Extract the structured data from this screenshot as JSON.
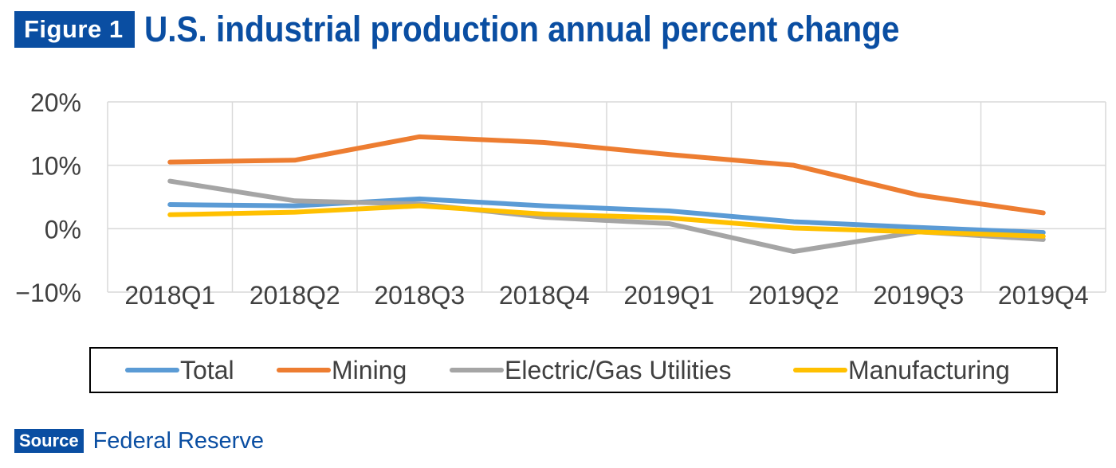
{
  "header": {
    "figure_label": "Figure 1",
    "title": "U.S. industrial production annual percent change"
  },
  "footer": {
    "source_label": "Source",
    "source_text": "Federal Reserve"
  },
  "chart_data": {
    "type": "line",
    "title": "U.S. industrial production annual percent change",
    "xlabel": "",
    "ylabel": "",
    "categories": [
      "2018Q1",
      "2018Q2",
      "2018Q3",
      "2018Q4",
      "2019Q1",
      "2019Q2",
      "2019Q3",
      "2019Q4"
    ],
    "ylim": [
      -10,
      20
    ],
    "yticks": [
      -10,
      0,
      10,
      20
    ],
    "ytick_labels": [
      "−10%",
      "0%",
      "10%",
      "20%"
    ],
    "grid": true,
    "legend_position": "bottom",
    "series": [
      {
        "name": "Total",
        "color": "#5b9bd5",
        "values": [
          3.8,
          3.6,
          4.7,
          3.6,
          2.8,
          1.1,
          0.2,
          -0.6
        ]
      },
      {
        "name": "Mining",
        "color": "#ed7d31",
        "values": [
          10.5,
          10.8,
          14.5,
          13.6,
          11.7,
          10.0,
          5.3,
          2.5
        ]
      },
      {
        "name": "Electric/Gas Utilities",
        "color": "#a5a5a5",
        "values": [
          7.5,
          4.4,
          3.9,
          1.8,
          0.8,
          -3.6,
          -0.5,
          -1.7
        ]
      },
      {
        "name": "Manufacturing",
        "color": "#ffc000",
        "values": [
          2.2,
          2.6,
          3.6,
          2.3,
          1.7,
          0.1,
          -0.5,
          -1.2
        ]
      }
    ]
  }
}
